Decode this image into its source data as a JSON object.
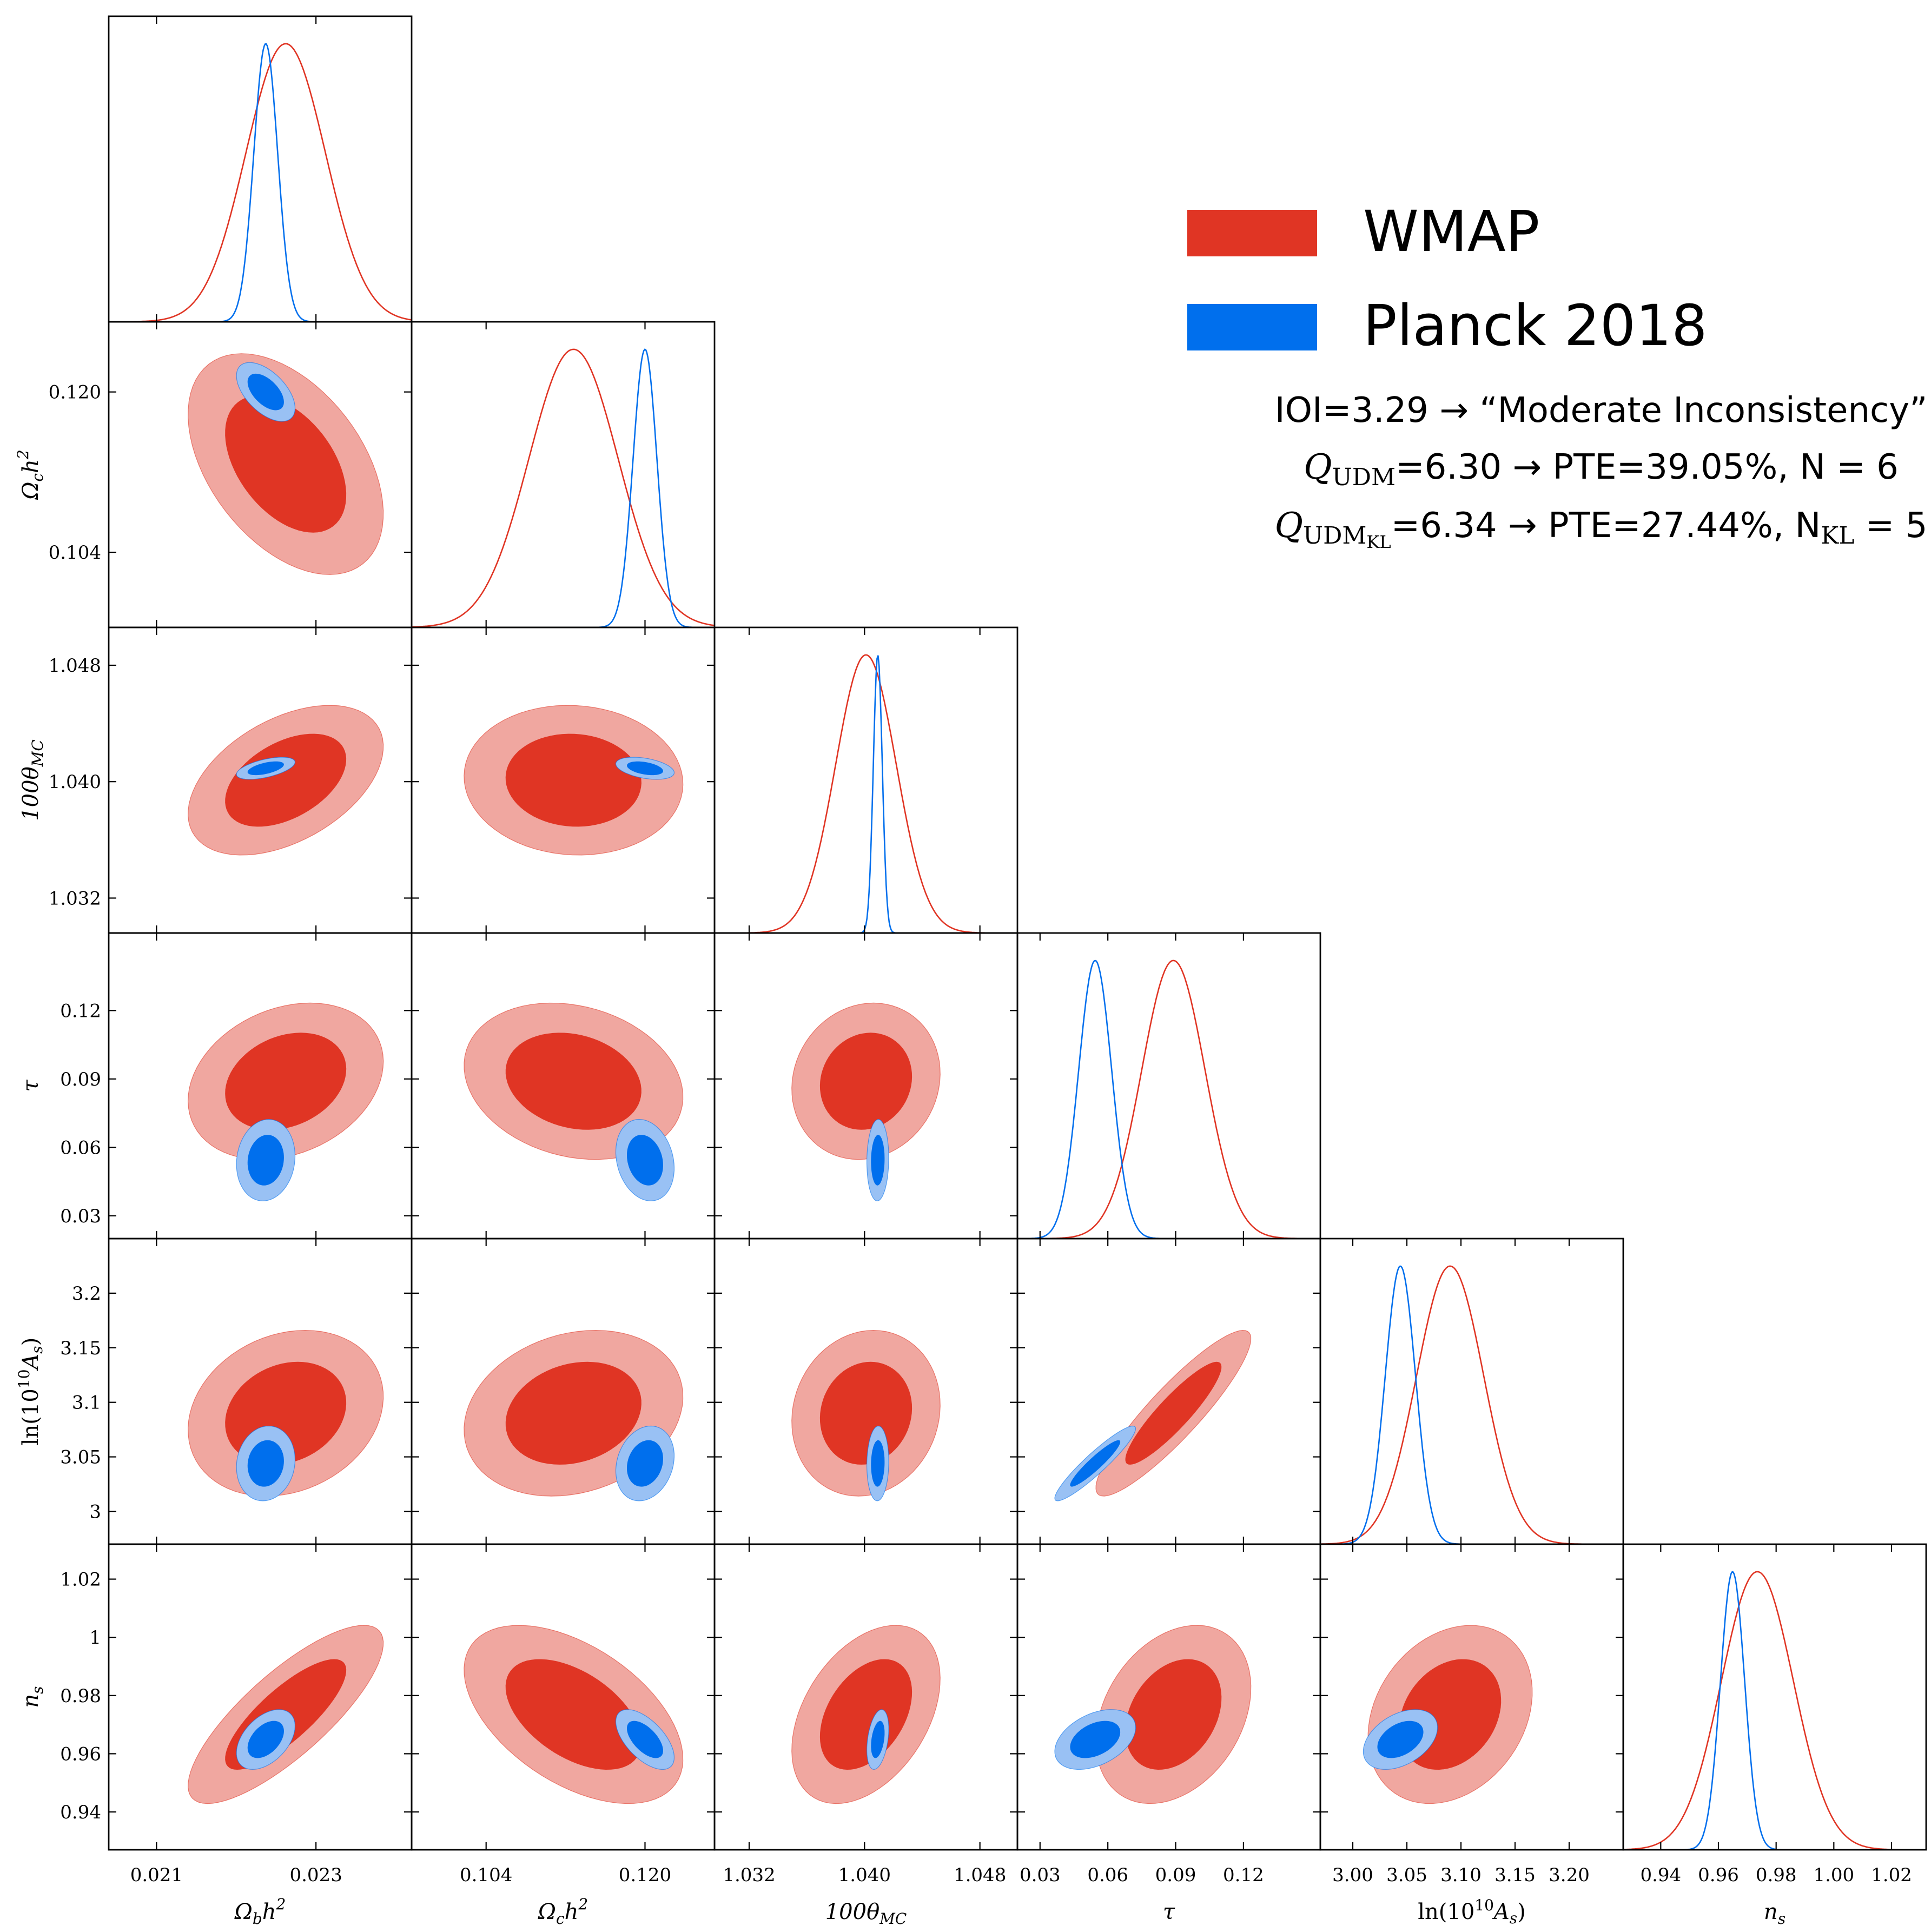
{
  "chart_data": {
    "type": "corner",
    "params": [
      {
        "name": "Omega_b h^2",
        "label": "Ωbh²",
        "base": "Ω",
        "sub": "b",
        "rest": "h",
        "sup": "2",
        "lim": [
          0.0204,
          0.0242
        ],
        "ticks": [
          "0.021",
          "0.023"
        ],
        "tick_values": [
          0.021,
          0.023
        ]
      },
      {
        "name": "Omega_c h^2",
        "label": "Ωch²",
        "base": "Ω",
        "sub": "c",
        "rest": "h",
        "sup": "2",
        "lim": [
          0.0965,
          0.127
        ],
        "ticks": [
          "0.104",
          "0.120"
        ],
        "tick_values": [
          0.104,
          0.12
        ]
      },
      {
        "name": "100 theta_MC",
        "label": "100θMC",
        "base": "100θ",
        "sub": "MC",
        "rest": "",
        "sup": "",
        "lim": [
          1.0296,
          1.0506
        ],
        "ticks": [
          "1.032",
          "1.040",
          "1.048"
        ],
        "tick_values": [
          1.032,
          1.04,
          1.048
        ]
      },
      {
        "name": "tau",
        "label": "τ",
        "base": "τ",
        "sub": "",
        "rest": "",
        "sup": "",
        "lim": [
          0.02,
          0.154
        ],
        "ticks": [
          "0.03",
          "0.06",
          "0.09",
          "0.12"
        ],
        "tick_values": [
          0.03,
          0.06,
          0.09,
          0.12
        ]
      },
      {
        "name": "ln(10^10 A_s)",
        "label": "ln(10¹⁰As)",
        "base": "ln(10",
        "sub": "",
        "rest": "A",
        "sup": "10",
        "lim": [
          2.97,
          3.25
        ],
        "ticks": [
          "3",
          "3.05",
          "3.1",
          "3.15",
          "3.2"
        ],
        "tick_values": [
          3.0,
          3.05,
          3.1,
          3.15,
          3.2
        ],
        "bottom_ticks": [
          "3.00",
          "3.05",
          "3.10",
          "3.15",
          "3.20"
        ]
      },
      {
        "name": "n_s",
        "label": "ns",
        "base": "n",
        "sub": "s",
        "rest": "",
        "sup": "",
        "lim": [
          0.927,
          1.032
        ],
        "ticks": [
          "0.94",
          "0.96",
          "0.98",
          "1",
          "1.02"
        ],
        "tick_values": [
          0.94,
          0.96,
          0.98,
          1.0,
          1.02
        ],
        "bottom_ticks": [
          "0.94",
          "0.96",
          "0.98",
          "1.00",
          "1.02"
        ]
      }
    ],
    "series": [
      {
        "name": "WMAP",
        "color": "#e03524",
        "fill_inner": "#e03524",
        "fill_outer": "#f0a7a0",
        "mean": [
          0.02262,
          0.1128,
          1.0401,
          0.089,
          3.09,
          0.9735
        ],
        "sigma": [
          0.0005,
          0.0045,
          0.0021,
          0.014,
          0.031,
          0.0125
        ],
        "corr": [
          [
            1,
            -0.45,
            0.45,
            0.25,
            0.2,
            0.8
          ],
          [
            -0.45,
            1,
            -0.05,
            -0.2,
            0.2,
            -0.5
          ],
          [
            0.45,
            -0.05,
            1,
            0.1,
            0.1,
            0.4
          ],
          [
            0.25,
            -0.2,
            0.1,
            1,
            0.9,
            0.3
          ],
          [
            0.2,
            0.2,
            0.1,
            0.9,
            1,
            0.25
          ],
          [
            0.8,
            -0.5,
            0.4,
            0.3,
            0.25,
            1
          ]
        ]
      },
      {
        "name": "Planck 2018",
        "color": "#006fed",
        "fill_inner": "#006fed",
        "fill_outer": "#99c1f4",
        "mean": [
          0.02237,
          0.12,
          1.04092,
          0.0544,
          3.044,
          0.9649
        ],
        "sigma": [
          0.00015,
          0.0012,
          0.00031,
          0.0073,
          0.014,
          0.0042
        ],
        "corr": [
          [
            1,
            -0.55,
            0.55,
            0.1,
            0.1,
            0.45
          ],
          [
            -0.55,
            1,
            -0.4,
            -0.2,
            0.2,
            -0.6
          ],
          [
            0.55,
            -0.4,
            1,
            0.05,
            0.05,
            0.35
          ],
          [
            0.1,
            -0.2,
            0.05,
            1,
            0.93,
            0.4
          ],
          [
            0.1,
            0.2,
            0.05,
            0.93,
            1,
            0.4
          ],
          [
            0.45,
            -0.6,
            0.35,
            0.4,
            0.4,
            1
          ]
        ]
      }
    ],
    "legend": [
      "WMAP",
      "Planck 2018"
    ],
    "legend_position": "top-right"
  },
  "annotations": {
    "line1": {
      "text": "IOI=3.29 → “Moderate Inconsistency”"
    },
    "line2": {
      "q": "Q",
      "q_sub": "UDM",
      "rest": "=6.30 → PTE=39.05%, N = 6"
    },
    "line3": {
      "q": "Q",
      "q_sub": "UDM",
      "q_subsub": "KL",
      "rest": "=6.34 → PTE=27.44%, N",
      "n_sub": "KL",
      "tail": " = 5"
    }
  }
}
